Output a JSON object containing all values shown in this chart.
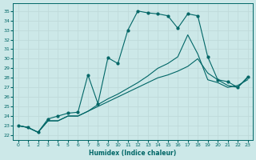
{
  "xlabel": "Humidex (Indice chaleur)",
  "bg_color": "#cce8e8",
  "grid_color": "#aacccc",
  "line_color": "#006666",
  "xlim": [
    -0.5,
    23.5
  ],
  "ylim": [
    21.5,
    35.8
  ],
  "xticks": [
    0,
    1,
    2,
    3,
    4,
    5,
    6,
    7,
    8,
    9,
    10,
    11,
    12,
    13,
    14,
    15,
    16,
    17,
    18,
    19,
    20,
    21,
    22,
    23
  ],
  "yticks": [
    22,
    23,
    24,
    25,
    26,
    27,
    28,
    29,
    30,
    31,
    32,
    33,
    34,
    35
  ],
  "curve1_x": [
    0,
    1,
    2,
    3,
    4,
    5,
    6,
    7,
    8,
    9,
    10,
    11,
    12,
    13,
    14,
    15,
    16,
    17,
    18,
    19,
    20,
    21,
    22,
    23
  ],
  "curve1_y": [
    23.0,
    22.8,
    22.3,
    23.7,
    24.0,
    24.3,
    24.4,
    28.3,
    25.3,
    30.1,
    29.5,
    33.0,
    35.0,
    34.8,
    34.7,
    34.5,
    33.2,
    34.7,
    34.5,
    30.2,
    27.8,
    27.6,
    27.0,
    28.1
  ],
  "curve2_x": [
    0,
    1,
    2,
    3,
    4,
    5,
    6,
    7,
    8,
    9,
    10,
    11,
    12,
    13,
    14,
    15,
    16,
    17,
    18,
    19,
    20,
    21,
    22,
    23
  ],
  "curve2_y": [
    23.0,
    22.8,
    22.3,
    23.5,
    23.5,
    24.0,
    24.0,
    24.5,
    25.0,
    25.5,
    26.0,
    26.5,
    27.0,
    27.5,
    28.0,
    28.3,
    28.7,
    29.2,
    30.0,
    28.5,
    27.8,
    27.2,
    27.0,
    28.0
  ],
  "curve3_x": [
    0,
    1,
    2,
    3,
    4,
    5,
    6,
    7,
    8,
    9,
    10,
    11,
    12,
    13,
    14,
    15,
    16,
    17,
    18,
    19,
    20,
    21,
    22,
    23
  ],
  "curve3_y": [
    23.0,
    22.8,
    22.3,
    23.5,
    23.5,
    24.0,
    24.0,
    24.5,
    25.2,
    25.8,
    26.3,
    26.9,
    27.5,
    28.2,
    29.0,
    29.5,
    30.2,
    32.5,
    30.5,
    27.8,
    27.5,
    27.0,
    27.2,
    27.8
  ]
}
